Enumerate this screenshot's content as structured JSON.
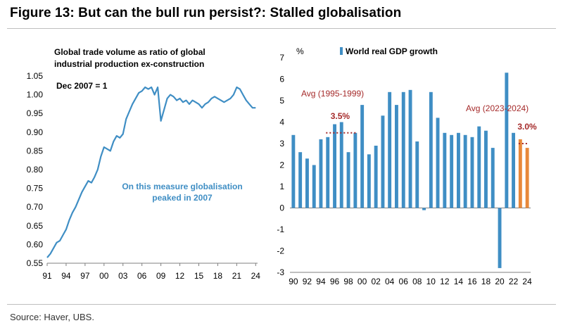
{
  "figure_title": "Figure 13: But can the bull run persist?: Stalled globalisation",
  "source": "Source: Haver, UBS.",
  "chart_data": [
    {
      "type": "line",
      "title": "Global trade volume as ratio of global industrial production ex-construction",
      "title_lines": [
        "Global trade volume as ratio of global",
        "industrial production ex-construction"
      ],
      "note": "Dec 2007 = 1",
      "annotation_lines": [
        "On this measure globalisation",
        "peaked in 2007"
      ],
      "color": "#3f8ec4",
      "ylim": [
        0.55,
        1.05
      ],
      "yticks": [
        0.55,
        0.6,
        0.65,
        0.7,
        0.75,
        0.8,
        0.85,
        0.9,
        0.95,
        1.0,
        1.05
      ],
      "ytick_labels": [
        "0.55",
        "0.60",
        "0.65",
        "0.70",
        "0.75",
        "0.80",
        "0.85",
        "0.90",
        "0.95",
        "1.00",
        "1.05"
      ],
      "xlim": [
        1991,
        2024.3
      ],
      "xticks": [
        1991,
        1994,
        1997,
        2000,
        2003,
        2006,
        2009,
        2012,
        2015,
        2018,
        2021,
        2024
      ],
      "xtick_labels": [
        "91",
        "94",
        "97",
        "00",
        "03",
        "06",
        "09",
        "12",
        "15",
        "18",
        "21",
        "24"
      ],
      "x": [
        1991.0,
        1991.5,
        1992.0,
        1992.5,
        1993.0,
        1993.5,
        1994.0,
        1994.5,
        1995.0,
        1995.5,
        1996.0,
        1996.5,
        1997.0,
        1997.5,
        1998.0,
        1998.5,
        1999.0,
        1999.5,
        2000.0,
        2000.5,
        2001.0,
        2001.5,
        2002.0,
        2002.5,
        2003.0,
        2003.5,
        2004.0,
        2004.5,
        2005.0,
        2005.5,
        2006.0,
        2006.5,
        2007.0,
        2007.5,
        2008.0,
        2008.5,
        2009.0,
        2009.5,
        2010.0,
        2010.5,
        2011.0,
        2011.5,
        2012.0,
        2012.5,
        2013.0,
        2013.5,
        2014.0,
        2014.5,
        2015.0,
        2015.5,
        2016.0,
        2016.5,
        2017.0,
        2017.5,
        2018.0,
        2018.5,
        2019.0,
        2019.5,
        2020.0,
        2020.5,
        2021.0,
        2021.5,
        2022.0,
        2022.5,
        2023.0,
        2023.5,
        2024.0
      ],
      "values": [
        0.565,
        0.575,
        0.59,
        0.605,
        0.61,
        0.625,
        0.64,
        0.665,
        0.685,
        0.7,
        0.72,
        0.74,
        0.755,
        0.77,
        0.765,
        0.78,
        0.8,
        0.835,
        0.86,
        0.855,
        0.85,
        0.875,
        0.89,
        0.885,
        0.895,
        0.935,
        0.955,
        0.975,
        0.99,
        1.005,
        1.01,
        1.02,
        1.015,
        1.02,
        1.0,
        1.02,
        0.93,
        0.96,
        0.99,
        1.0,
        0.995,
        0.985,
        0.99,
        0.98,
        0.985,
        0.975,
        0.985,
        0.98,
        0.975,
        0.965,
        0.975,
        0.98,
        0.99,
        0.995,
        0.99,
        0.985,
        0.98,
        0.985,
        0.99,
        1.0,
        1.02,
        1.015,
        1.0,
        0.985,
        0.975,
        0.965,
        0.965
      ]
    },
    {
      "type": "bar",
      "title": "World real GDP growth",
      "unit_label": "%",
      "ylim": [
        -3,
        7
      ],
      "yticks": [
        -3,
        -2,
        -1,
        0,
        1,
        2,
        3,
        4,
        5,
        6,
        7
      ],
      "ytick_labels": [
        "-3",
        "-2",
        "-1",
        "0",
        "1",
        "2",
        "3",
        "4",
        "5",
        "6",
        "7"
      ],
      "categories": [
        "90",
        "91",
        "92",
        "93",
        "94",
        "95",
        "96",
        "97",
        "98",
        "99",
        "00",
        "01",
        "02",
        "03",
        "04",
        "05",
        "06",
        "07",
        "08",
        "09",
        "10",
        "11",
        "12",
        "13",
        "14",
        "15",
        "16",
        "17",
        "18",
        "19",
        "20",
        "21",
        "22",
        "23",
        "24"
      ],
      "xtick_labels": [
        "90",
        "92",
        "94",
        "96",
        "98",
        "00",
        "02",
        "04",
        "06",
        "08",
        "10",
        "12",
        "14",
        "16",
        "18",
        "20",
        "22",
        "24"
      ],
      "values": [
        3.4,
        2.6,
        2.3,
        2.0,
        3.2,
        3.3,
        3.9,
        4.0,
        2.6,
        3.5,
        4.8,
        2.5,
        2.9,
        4.3,
        5.4,
        4.8,
        5.4,
        5.5,
        3.1,
        -0.1,
        5.4,
        4.2,
        3.5,
        3.4,
        3.5,
        3.4,
        3.3,
        3.8,
        3.6,
        2.8,
        -2.8,
        6.3,
        3.5,
        3.2,
        2.8
      ],
      "colors": {
        "actual": "#3f8ec4",
        "forecast": "#e8883a"
      },
      "forecast_from": "23",
      "averages": [
        {
          "label": "Avg (1995-1999)",
          "value": 3.5,
          "value_label": "3.5%",
          "from": "95",
          "to": "99"
        },
        {
          "label": "Avg (2023-2024)",
          "value": 3.0,
          "value_label": "3.0%",
          "from": "23",
          "to": "24"
        }
      ],
      "annotation_color": "#a52a2a"
    }
  ]
}
